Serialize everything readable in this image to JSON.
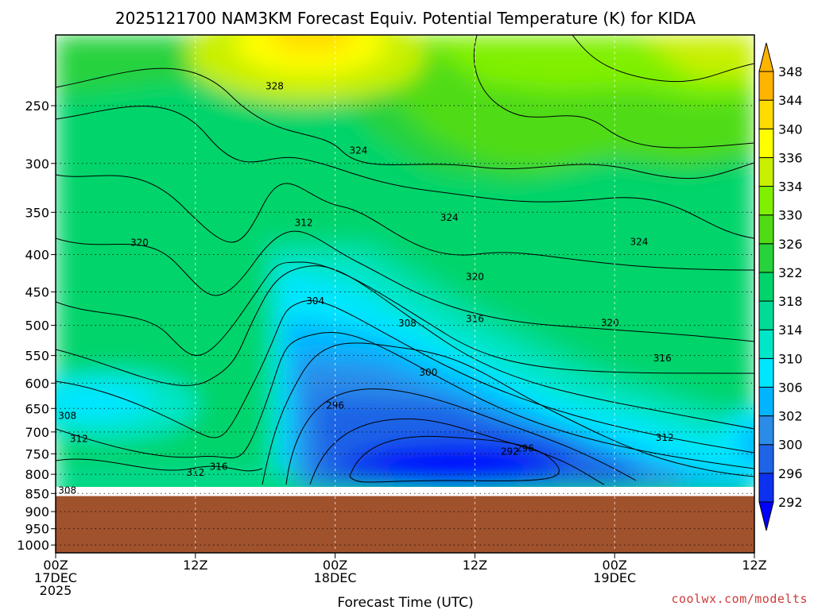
{
  "chart_data": {
    "type": "heatmap",
    "title": "2025121700 NAM3KM Forecast Equiv. Potential Temperature (K) for KIDA",
    "xlabel": "Forecast Time (UTC)",
    "ylabel": "",
    "credit": "coolwx.com/modelts",
    "x_ticks": [
      {
        "hour": 0,
        "lines": [
          "00Z",
          "17DEC",
          "2025"
        ]
      },
      {
        "hour": 12,
        "lines": [
          "12Z"
        ]
      },
      {
        "hour": 24,
        "lines": [
          "00Z",
          "18DEC"
        ]
      },
      {
        "hour": 36,
        "lines": [
          "12Z"
        ]
      },
      {
        "hour": 48,
        "lines": [
          "00Z",
          "19DEC"
        ]
      },
      {
        "hour": 60,
        "lines": [
          "12Z"
        ]
      }
    ],
    "x_range_hours": [
      0,
      60
    ],
    "y_range_hpa": [
      1025,
      200
    ],
    "y_scale": "log",
    "y_ticks": [
      250,
      300,
      350,
      400,
      450,
      500,
      550,
      600,
      650,
      700,
      750,
      800,
      850,
      900,
      950,
      1000
    ],
    "grid": "dotted",
    "ground_level_hpa": 857,
    "ground_color": "#a0522d",
    "colorbar": {
      "placement": "right",
      "levels": [
        292,
        296,
        300,
        302,
        306,
        310,
        314,
        318,
        322,
        326,
        330,
        334,
        336,
        340,
        344,
        348
      ],
      "colors": [
        "#0000ff",
        "#0c32f0",
        "#1e64e6",
        "#2b8ce8",
        "#00b4ff",
        "#00e6ff",
        "#00e6c8",
        "#00dc96",
        "#00d46a",
        "#28d23c",
        "#50dc14",
        "#80f000",
        "#c8f000",
        "#ffff00",
        "#ffdc00",
        "#ffb400"
      ]
    },
    "contour_labels": [
      {
        "hour": 18.8,
        "hpa": 235,
        "value": "328"
      },
      {
        "hour": 26.0,
        "hpa": 288,
        "value": "324"
      },
      {
        "hour": 33.8,
        "hpa": 356,
        "value": "324"
      },
      {
        "hour": 50.1,
        "hpa": 384,
        "value": "324"
      },
      {
        "hour": 7.2,
        "hpa": 385,
        "value": "320"
      },
      {
        "hour": 36.0,
        "hpa": 429,
        "value": "320"
      },
      {
        "hour": 47.6,
        "hpa": 496,
        "value": "320"
      },
      {
        "hour": 21.3,
        "hpa": 362,
        "value": "312"
      },
      {
        "hour": 22.3,
        "hpa": 463,
        "value": "304"
      },
      {
        "hour": 30.2,
        "hpa": 497,
        "value": "308"
      },
      {
        "hour": 36.0,
        "hpa": 490,
        "value": "316"
      },
      {
        "hour": 52.1,
        "hpa": 555,
        "value": "316"
      },
      {
        "hour": 32.0,
        "hpa": 580,
        "value": "300"
      },
      {
        "hour": 24.0,
        "hpa": 644,
        "value": "296"
      },
      {
        "hour": 39.0,
        "hpa": 745,
        "value": "292"
      },
      {
        "hour": 40.3,
        "hpa": 737,
        "value": "296"
      },
      {
        "hour": 52.3,
        "hpa": 713,
        "value": "312"
      },
      {
        "hour": 1.0,
        "hpa": 665,
        "value": "308"
      },
      {
        "hour": 2.0,
        "hpa": 715,
        "value": "312"
      },
      {
        "hour": 12.0,
        "hpa": 796,
        "value": "312"
      },
      {
        "hour": 14.0,
        "hpa": 781,
        "value": "316"
      },
      {
        "hour": 1.0,
        "hpa": 842,
        "value": "308"
      }
    ]
  }
}
